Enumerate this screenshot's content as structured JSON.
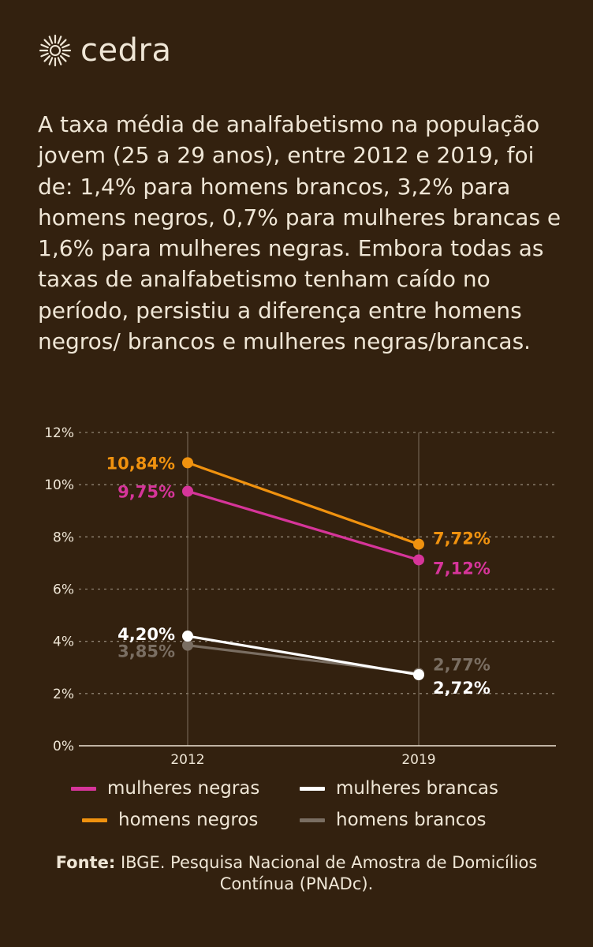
{
  "brand": {
    "name": "cedra",
    "logo_icon": "sunburst-icon"
  },
  "intro": "A taxa média de analfabetismo na população jovem (25 a 29 anos), entre 2012 e 2019, foi de: 1,4% para homens brancos, 3,2% para homens negros, 0,7% para mulheres brancas e 1,6% para mulheres negras. Embora todas as taxas de analfabetismo tenham caído no período, persistiu a diferença entre homens negros/ brancos e mulheres negras/brancas.",
  "chart_data": {
    "type": "line",
    "x": [
      "2012",
      "2019"
    ],
    "yticks": [
      "0%",
      "2%",
      "4%",
      "6%",
      "8%",
      "10%",
      "12%"
    ],
    "ylim": [
      0,
      12
    ],
    "grid": true,
    "legend_position": "bottom",
    "series": [
      {
        "name": "homens negros",
        "color": "#f0920f",
        "values": [
          10.84,
          7.72
        ],
        "labels": [
          "10,84%",
          "7,72%"
        ]
      },
      {
        "name": "mulheres negras",
        "color": "#d6359a",
        "values": [
          9.75,
          7.12
        ],
        "labels": [
          "9,75%",
          "7,12%"
        ]
      },
      {
        "name": "mulheres brancas",
        "color": "#ffffff",
        "values": [
          4.2,
          2.72
        ],
        "labels": [
          "4,20%",
          "2,72%"
        ]
      },
      {
        "name": "homens brancos",
        "color": "#7a6e62",
        "values": [
          3.85,
          2.77
        ],
        "labels": [
          "3,85%",
          "2,77%"
        ]
      }
    ]
  },
  "legend": [
    {
      "label": "mulheres negras",
      "color": "#d6359a"
    },
    {
      "label": "mulheres brancas",
      "color": "#ffffff"
    },
    {
      "label": "homens negros",
      "color": "#f0920f"
    },
    {
      "label": "homens brancos",
      "color": "#7a6e62"
    }
  ],
  "source": {
    "prefix": "Fonte:",
    "text": "IBGE. Pesquisa Nacional de Amostra de Domicílios Contínua (PNADc)."
  }
}
